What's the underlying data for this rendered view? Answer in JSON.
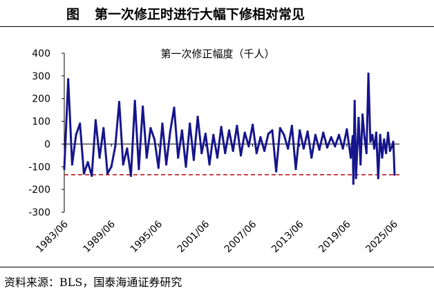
{
  "figure": {
    "label": "图",
    "title": "第一次修正时进行大幅下修相对常见",
    "source": "资料来源：BLS，国泰海通证券研究"
  },
  "colors": {
    "series": "#16158c",
    "threshold": "#c0161c",
    "axis": "#000000"
  },
  "chart_data": {
    "type": "line",
    "title": "第一次修正幅度（千人）",
    "xlabel": "",
    "ylabel": "",
    "ylim": [
      -300,
      400
    ],
    "yticks": [
      400,
      300,
      200,
      100,
      0,
      -100,
      -200,
      -300
    ],
    "x_ticks": [
      "1983/06",
      "1989/06",
      "1995/06",
      "2001/06",
      "2007/06",
      "2013/06",
      "2019/06",
      "2025/06"
    ],
    "x_range": [
      "1983/06",
      "2025/07"
    ],
    "grid": false,
    "legend": "none",
    "reference_lines": [
      {
        "type": "horizontal",
        "y": -135,
        "style": "dashed"
      }
    ],
    "series": [
      {
        "values": [
          {
            "x": "1983/06",
            "y": -110
          },
          {
            "x": "1983/12",
            "y": 285
          },
          {
            "x": "1984/06",
            "y": -90
          },
          {
            "x": "1984/12",
            "y": 40
          },
          {
            "x": "1985/06",
            "y": 90
          },
          {
            "x": "1985/12",
            "y": -130
          },
          {
            "x": "1986/06",
            "y": -80
          },
          {
            "x": "1986/12",
            "y": -140
          },
          {
            "x": "1987/06",
            "y": 105
          },
          {
            "x": "1987/12",
            "y": -60
          },
          {
            "x": "1988/06",
            "y": 70
          },
          {
            "x": "1988/12",
            "y": -130
          },
          {
            "x": "1989/06",
            "y": -100
          },
          {
            "x": "1989/12",
            "y": -10
          },
          {
            "x": "1990/06",
            "y": 185
          },
          {
            "x": "1990/12",
            "y": -90
          },
          {
            "x": "1991/06",
            "y": -20
          },
          {
            "x": "1991/12",
            "y": -140
          },
          {
            "x": "1992/06",
            "y": 190
          },
          {
            "x": "1992/12",
            "y": -110
          },
          {
            "x": "1993/06",
            "y": 165
          },
          {
            "x": "1993/12",
            "y": -60
          },
          {
            "x": "1994/06",
            "y": 70
          },
          {
            "x": "1994/12",
            "y": 20
          },
          {
            "x": "1995/06",
            "y": -105
          },
          {
            "x": "1995/12",
            "y": 90
          },
          {
            "x": "1996/06",
            "y": -90
          },
          {
            "x": "1996/12",
            "y": 55
          },
          {
            "x": "1997/06",
            "y": 160
          },
          {
            "x": "1997/12",
            "y": -60
          },
          {
            "x": "1998/06",
            "y": 60
          },
          {
            "x": "1998/12",
            "y": -100
          },
          {
            "x": "1999/06",
            "y": 90
          },
          {
            "x": "1999/12",
            "y": -70
          },
          {
            "x": "2000/06",
            "y": 120
          },
          {
            "x": "2000/12",
            "y": -40
          },
          {
            "x": "2001/06",
            "y": 45
          },
          {
            "x": "2001/12",
            "y": -90
          },
          {
            "x": "2002/06",
            "y": 40
          },
          {
            "x": "2002/12",
            "y": -60
          },
          {
            "x": "2003/06",
            "y": 75
          },
          {
            "x": "2003/12",
            "y": -40
          },
          {
            "x": "2004/06",
            "y": 60
          },
          {
            "x": "2004/12",
            "y": -30
          },
          {
            "x": "2005/06",
            "y": 80
          },
          {
            "x": "2005/12",
            "y": -50
          },
          {
            "x": "2006/06",
            "y": 50
          },
          {
            "x": "2006/12",
            "y": -10
          },
          {
            "x": "2007/06",
            "y": 85
          },
          {
            "x": "2007/12",
            "y": -40
          },
          {
            "x": "2008/06",
            "y": 30
          },
          {
            "x": "2008/12",
            "y": -30
          },
          {
            "x": "2009/06",
            "y": 45
          },
          {
            "x": "2009/12",
            "y": 60
          },
          {
            "x": "2010/06",
            "y": -120
          },
          {
            "x": "2010/12",
            "y": 70
          },
          {
            "x": "2011/06",
            "y": 40
          },
          {
            "x": "2011/12",
            "y": -20
          },
          {
            "x": "2012/06",
            "y": 80
          },
          {
            "x": "2012/12",
            "y": -110
          },
          {
            "x": "2013/06",
            "y": 60
          },
          {
            "x": "2013/12",
            "y": -20
          },
          {
            "x": "2014/06",
            "y": 55
          },
          {
            "x": "2014/12",
            "y": -60
          },
          {
            "x": "2015/06",
            "y": 40
          },
          {
            "x": "2015/12",
            "y": -25
          },
          {
            "x": "2016/06",
            "y": 50
          },
          {
            "x": "2016/12",
            "y": -15
          },
          {
            "x": "2017/06",
            "y": 30
          },
          {
            "x": "2017/12",
            "y": -10
          },
          {
            "x": "2018/06",
            "y": 40
          },
          {
            "x": "2018/12",
            "y": -20
          },
          {
            "x": "2019/06",
            "y": 65
          },
          {
            "x": "2019/12",
            "y": -60
          },
          {
            "x": "2020/03",
            "y": 35
          },
          {
            "x": "2020/04",
            "y": -175
          },
          {
            "x": "2020/06",
            "y": 190
          },
          {
            "x": "2020/08",
            "y": -150
          },
          {
            "x": "2020/12",
            "y": 115
          },
          {
            "x": "2021/03",
            "y": -90
          },
          {
            "x": "2021/06",
            "y": 130
          },
          {
            "x": "2021/09",
            "y": 30
          },
          {
            "x": "2021/12",
            "y": -40
          },
          {
            "x": "2022/03",
            "y": 310
          },
          {
            "x": "2022/06",
            "y": 10
          },
          {
            "x": "2022/09",
            "y": 40
          },
          {
            "x": "2022/12",
            "y": -20
          },
          {
            "x": "2023/03",
            "y": 50
          },
          {
            "x": "2023/06",
            "y": -150
          },
          {
            "x": "2023/09",
            "y": 40
          },
          {
            "x": "2023/12",
            "y": -60
          },
          {
            "x": "2024/03",
            "y": 20
          },
          {
            "x": "2024/06",
            "y": -40
          },
          {
            "x": "2024/09",
            "y": 50
          },
          {
            "x": "2024/12",
            "y": -30
          },
          {
            "x": "2025/03",
            "y": -10
          },
          {
            "x": "2025/05",
            "y": 10
          },
          {
            "x": "2025/06",
            "y": -55
          },
          {
            "x": "2025/07",
            "y": -135
          }
        ]
      }
    ]
  }
}
